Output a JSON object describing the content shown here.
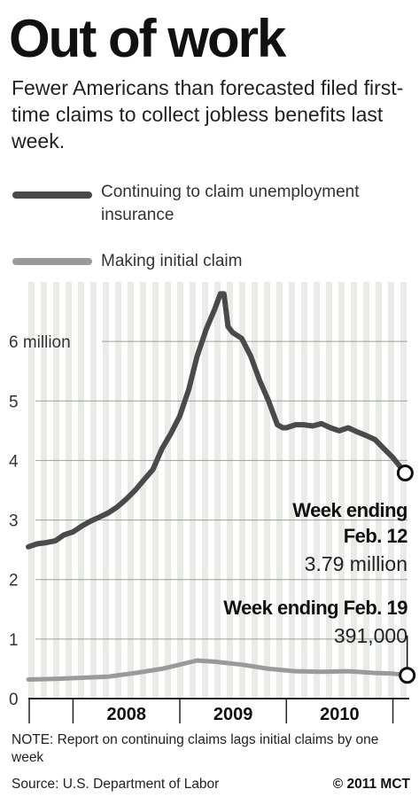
{
  "header": {
    "title": "Out of work",
    "subtitle": "Fewer Americans than forecasted filed first-time claims to collect jobless benefits last week."
  },
  "legend": {
    "items": [
      {
        "label": "Continuing to claim unemployment insurance",
        "color": "#4a4a4a"
      },
      {
        "label": "Making initial claim",
        "color": "#9a9a9a"
      }
    ]
  },
  "chart_data": {
    "type": "line",
    "title": "Out of work",
    "ylabel": "",
    "xlabel": "",
    "ylim": [
      0,
      7
    ],
    "yticks": [
      {
        "value": 0,
        "label": "0"
      },
      {
        "value": 1,
        "label": "1"
      },
      {
        "value": 2,
        "label": "2"
      },
      {
        "value": 3,
        "label": "3"
      },
      {
        "value": 4,
        "label": "4"
      },
      {
        "value": 5,
        "label": "5"
      },
      {
        "value": 6,
        "label": "6 million"
      }
    ],
    "xlim": [
      "2007-08-01",
      "2011-02-26"
    ],
    "xticks": [
      {
        "label": "2008",
        "start": "2008-01-01",
        "end": "2009-01-01"
      },
      {
        "label": "2009",
        "start": "2009-01-01",
        "end": "2010-01-01"
      },
      {
        "label": "2010",
        "start": "2010-01-01",
        "end": "2011-01-01"
      }
    ],
    "grid": true,
    "legend_position": "top",
    "series": [
      {
        "name": "Continuing to claim unemployment insurance",
        "color": "#4a4a4a",
        "x": [
          "2007-08-01",
          "2007-09-01",
          "2007-10-01",
          "2007-11-01",
          "2007-12-01",
          "2008-01-01",
          "2008-02-01",
          "2008-03-01",
          "2008-04-01",
          "2008-05-01",
          "2008-06-01",
          "2008-07-01",
          "2008-08-01",
          "2008-09-01",
          "2008-10-01",
          "2008-11-01",
          "2008-12-01",
          "2009-01-01",
          "2009-02-01",
          "2009-03-01",
          "2009-04-01",
          "2009-05-01",
          "2009-05-20",
          "2009-06-01",
          "2009-06-15",
          "2009-07-01",
          "2009-08-01",
          "2009-09-01",
          "2009-10-01",
          "2009-11-01",
          "2009-12-01",
          "2009-12-20",
          "2010-01-01",
          "2010-02-01",
          "2010-03-01",
          "2010-04-01",
          "2010-05-01",
          "2010-06-01",
          "2010-07-01",
          "2010-08-01",
          "2010-09-01",
          "2010-10-01",
          "2010-11-01",
          "2010-12-01",
          "2011-01-01",
          "2011-02-12"
        ],
        "values": [
          2.55,
          2.6,
          2.62,
          2.65,
          2.75,
          2.8,
          2.9,
          2.98,
          3.05,
          3.12,
          3.22,
          3.35,
          3.5,
          3.68,
          3.85,
          4.2,
          4.45,
          4.75,
          5.2,
          5.75,
          6.2,
          6.55,
          6.8,
          6.8,
          6.25,
          6.15,
          6.05,
          5.75,
          5.35,
          5.0,
          4.6,
          4.55,
          4.55,
          4.6,
          4.6,
          4.58,
          4.62,
          4.55,
          4.5,
          4.55,
          4.48,
          4.42,
          4.35,
          4.2,
          4.05,
          3.79
        ]
      },
      {
        "name": "Making initial claim",
        "color": "#9a9a9a",
        "x": [
          "2007-08-01",
          "2007-11-01",
          "2008-02-01",
          "2008-05-01",
          "2008-08-01",
          "2008-11-01",
          "2009-01-01",
          "2009-03-01",
          "2009-05-01",
          "2009-08-01",
          "2009-11-01",
          "2010-02-01",
          "2010-05-01",
          "2010-08-01",
          "2010-11-01",
          "2011-01-01",
          "2011-02-19"
        ],
        "values": [
          0.32,
          0.33,
          0.35,
          0.37,
          0.43,
          0.5,
          0.57,
          0.64,
          0.62,
          0.57,
          0.5,
          0.46,
          0.45,
          0.46,
          0.43,
          0.42,
          0.391
        ]
      }
    ],
    "annotations": [
      {
        "series": 0,
        "lines": [
          "Week ending",
          "Feb. 12"
        ],
        "value": "3.79 million"
      },
      {
        "series": 1,
        "lines": [
          "Week ending Feb. 19"
        ],
        "value": "391,000"
      }
    ]
  },
  "footer": {
    "note": "NOTE: Report on continuing claims lags initial claims by one week",
    "source": "Source: U.S. Department of Labor",
    "credit": "© 2011 MCT"
  }
}
